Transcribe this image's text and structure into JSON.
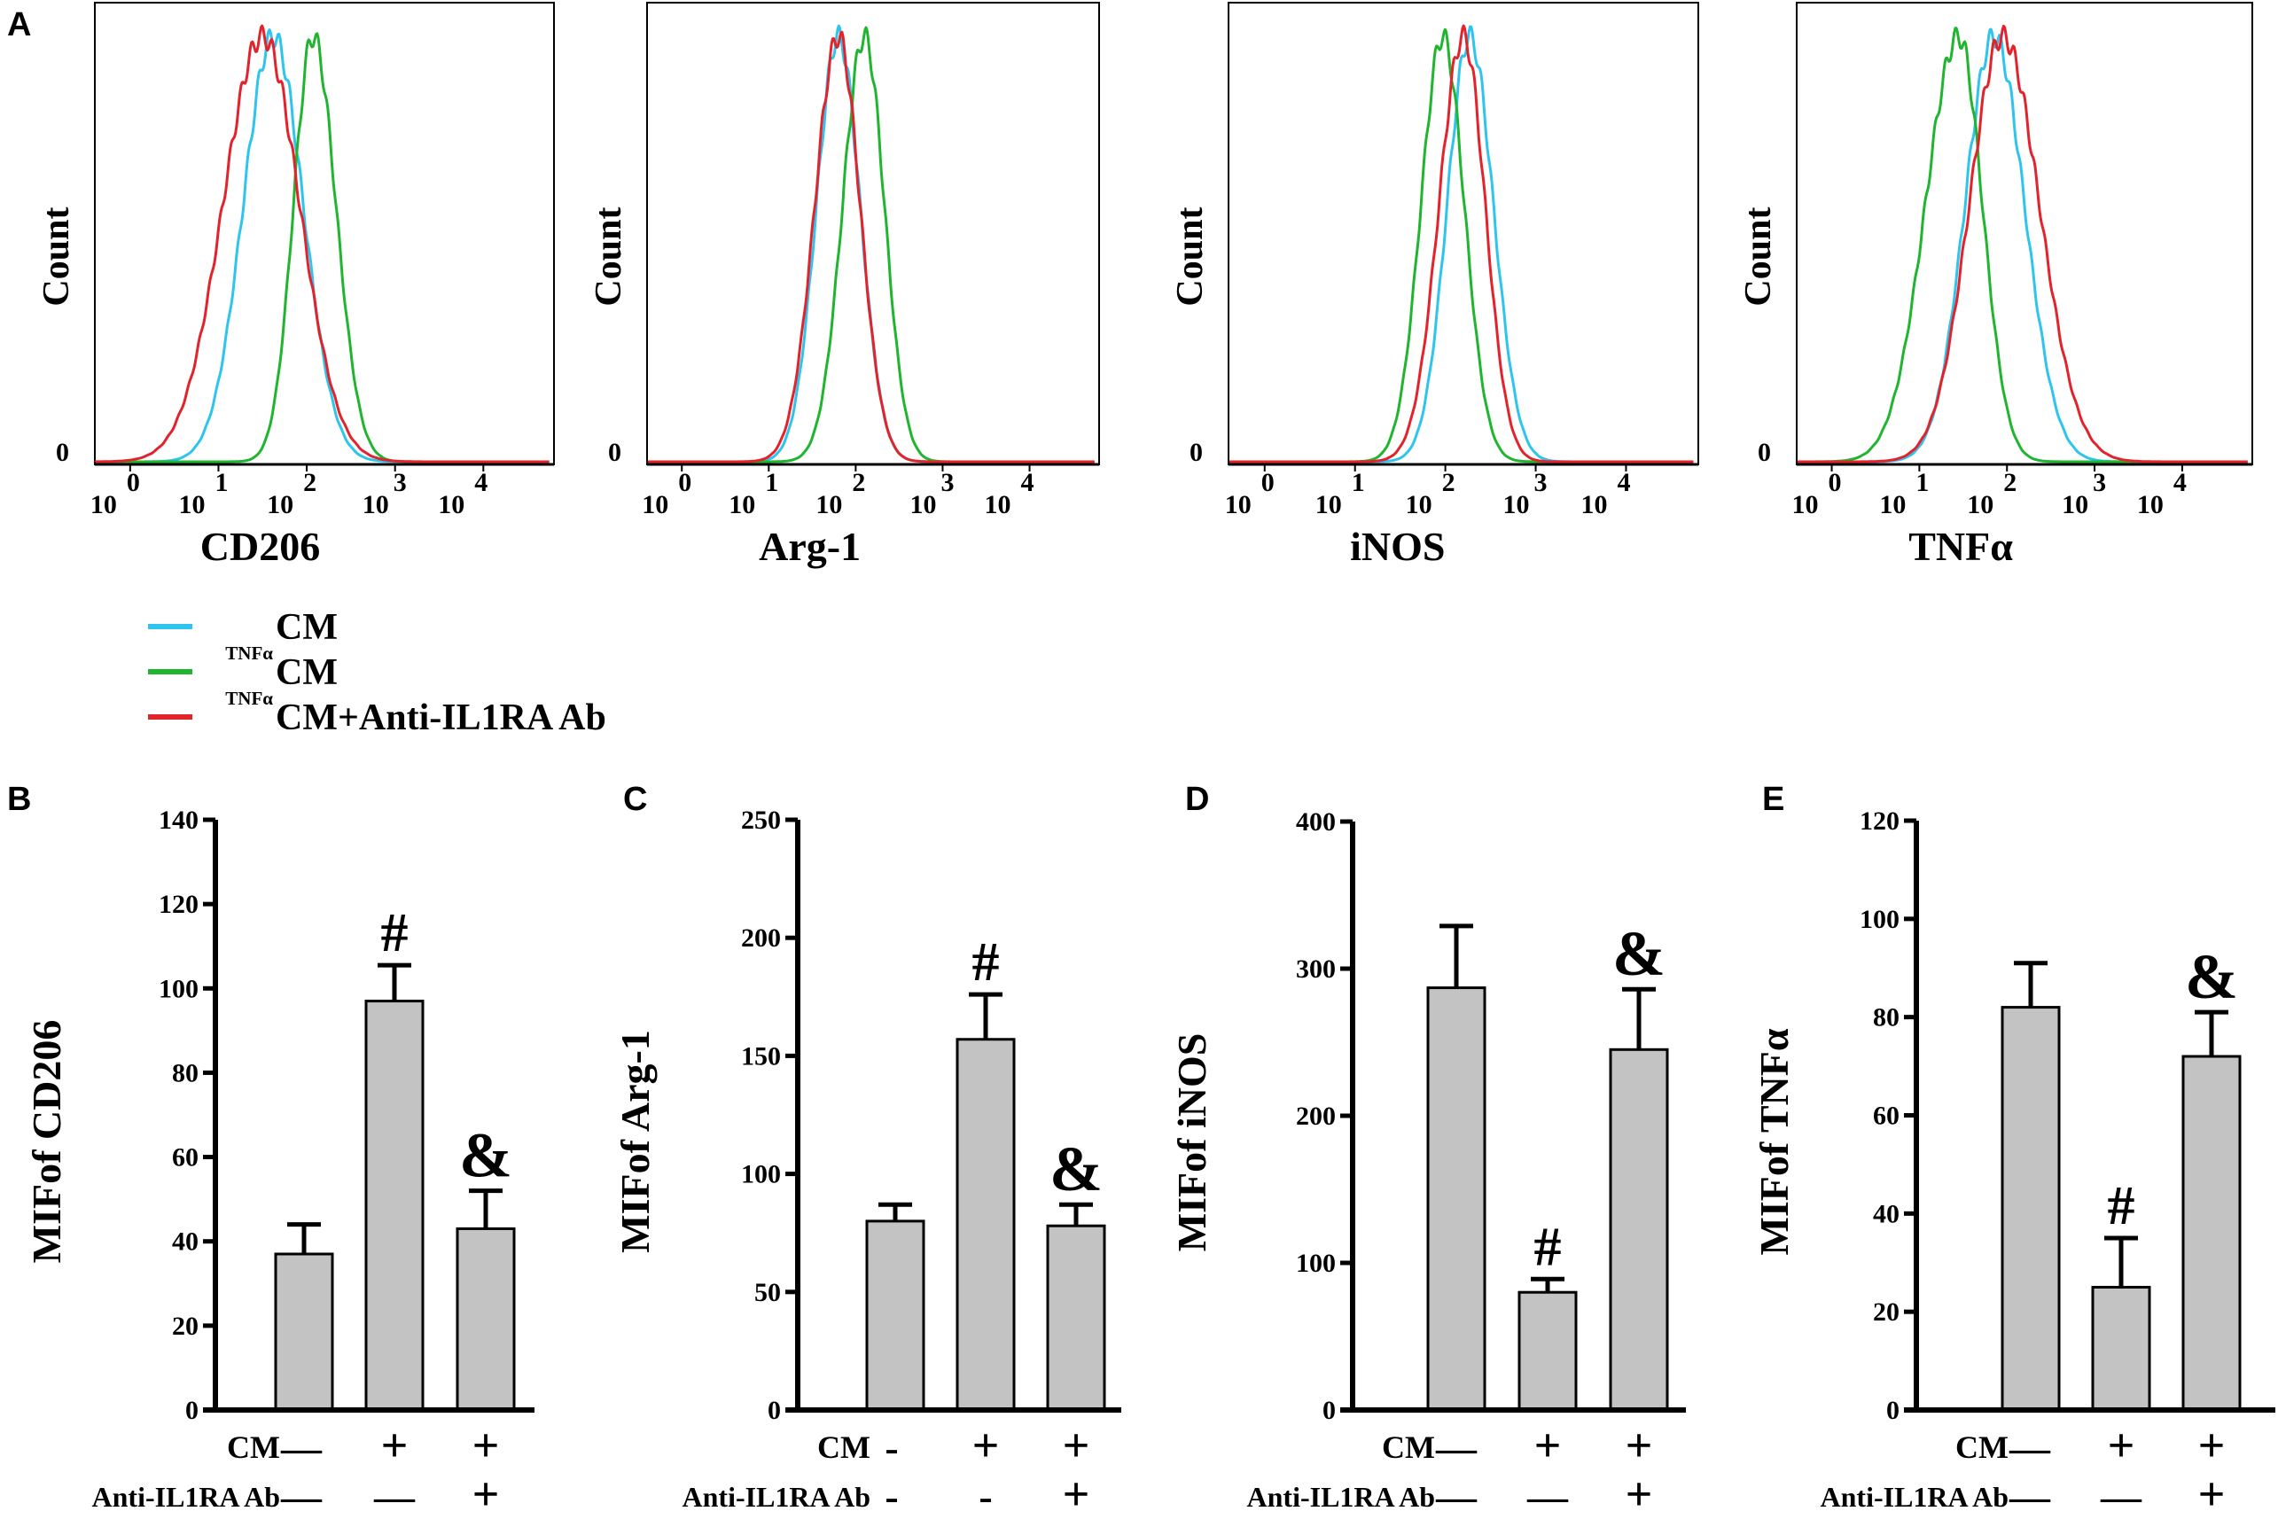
{
  "colors": {
    "cm": "#2ec4ee",
    "tnfa_cm": "#1fb52f",
    "tnfa_cm_ab": "#e3232c",
    "bar_fill": "#c3c3c3"
  },
  "panel_letters": [
    "A",
    "B",
    "C",
    "D",
    "E"
  ],
  "legend": [
    {
      "sup": "",
      "label": "CM",
      "color_key": "cm"
    },
    {
      "sup": "TNFα",
      "label": "CM",
      "color_key": "tnfa_cm"
    },
    {
      "sup": "TNFα",
      "label": "CM+Anti-IL1RA Ab",
      "color_key": "tnfa_cm_ab"
    }
  ],
  "histograms": [
    {
      "marker": "CD206",
      "ylabel": "Count",
      "zero_label": "0",
      "tick_base": [
        "10",
        "10",
        "10",
        "10",
        "10"
      ],
      "tick_exp": [
        "0",
        "1",
        "2",
        "3",
        "4"
      ],
      "series": [
        {
          "color_key": "cm",
          "peak_log": 1.62,
          "sigma_left": 0.34,
          "sigma_right": 0.34
        },
        {
          "color_key": "tnfa_cm",
          "peak_log": 2.07,
          "sigma_left": 0.22,
          "sigma_right": 0.26
        },
        {
          "color_key": "tnfa_cm_ab",
          "peak_log": 1.5,
          "sigma_left": 0.45,
          "sigma_right": 0.42
        }
      ]
    },
    {
      "marker": "Arg-1",
      "ylabel": "Count",
      "zero_label": "0",
      "tick_base": [
        "10",
        "10",
        "10",
        "10",
        "10"
      ],
      "tick_exp": [
        "0",
        "1",
        "2",
        "3",
        "4"
      ],
      "series": [
        {
          "color_key": "cm",
          "peak_log": 1.8,
          "sigma_left": 0.25,
          "sigma_right": 0.25
        },
        {
          "color_key": "tnfa_cm",
          "peak_log": 2.1,
          "sigma_left": 0.25,
          "sigma_right": 0.23
        },
        {
          "color_key": "tnfa_cm_ab",
          "peak_log": 1.8,
          "sigma_left": 0.27,
          "sigma_right": 0.25
        }
      ]
    },
    {
      "marker": "iNOS",
      "ylabel": "Count",
      "zero_label": "0",
      "tick_base": [
        "10",
        "10",
        "10",
        "10",
        "10"
      ],
      "tick_exp": [
        "0",
        "1",
        "2",
        "3",
        "4"
      ],
      "series": [
        {
          "color_key": "cm",
          "peak_log": 2.27,
          "sigma_left": 0.25,
          "sigma_right": 0.26
        },
        {
          "color_key": "tnfa_cm",
          "peak_log": 1.97,
          "sigma_left": 0.24,
          "sigma_right": 0.24
        },
        {
          "color_key": "tnfa_cm_ab",
          "peak_log": 2.2,
          "sigma_left": 0.27,
          "sigma_right": 0.24
        }
      ]
    },
    {
      "marker": "TNFα",
      "ylabel": "Count",
      "zero_label": "0",
      "tick_base": [
        "10",
        "10",
        "10",
        "10",
        "10"
      ],
      "tick_exp": [
        "0",
        "1",
        "2",
        "3",
        "4"
      ],
      "series": [
        {
          "color_key": "cm",
          "peak_log": 1.85,
          "sigma_left": 0.33,
          "sigma_right": 0.35
        },
        {
          "color_key": "tnfa_cm",
          "peak_log": 1.45,
          "sigma_left": 0.38,
          "sigma_right": 0.27
        },
        {
          "color_key": "tnfa_cm_ab",
          "peak_log": 1.95,
          "sigma_left": 0.38,
          "sigma_right": 0.42
        }
      ]
    }
  ],
  "chart_data": [
    {
      "type": "bar",
      "panel": "B",
      "title": "",
      "categories": [
        "CM",
        "TNFαCM",
        "TNFαCM+Anti-IL1RA Ab"
      ],
      "values": [
        37,
        97,
        43
      ],
      "errors": [
        7,
        8.5,
        9
      ],
      "annotations": [
        "",
        "#",
        "&"
      ],
      "ylabel": "MIFof CD206",
      "ylim": [
        0,
        140
      ],
      "yticks": [
        0,
        20,
        40,
        60,
        80,
        100,
        120,
        140
      ],
      "row_labels": [
        "CM",
        "Anti-IL1RA Ab"
      ],
      "row_signs": [
        [
          "—",
          "+",
          "+"
        ],
        [
          "—",
          "—",
          "+"
        ]
      ]
    },
    {
      "type": "bar",
      "panel": "C",
      "title": "",
      "categories": [
        "CM",
        "TNFαCM",
        "TNFαCM+Anti-IL1RA Ab"
      ],
      "values": [
        80,
        157,
        78
      ],
      "errors": [
        7,
        19,
        9
      ],
      "annotations": [
        "",
        "#",
        "&"
      ],
      "ylabel": "MIFof Arg-1",
      "ylim": [
        0,
        250
      ],
      "yticks": [
        0,
        50,
        100,
        150,
        200,
        250
      ],
      "row_labels": [
        "CM",
        "Anti-IL1RA Ab"
      ],
      "row_signs": [
        [
          "-",
          "+",
          "+"
        ],
        [
          "-",
          "-",
          "+"
        ]
      ]
    },
    {
      "type": "bar",
      "panel": "D",
      "title": "",
      "categories": [
        "CM",
        "TNFαCM",
        "TNFαCM+Anti-IL1RA Ab"
      ],
      "values": [
        287,
        80,
        245
      ],
      "errors": [
        42,
        9,
        41
      ],
      "annotations": [
        "",
        "#",
        "&"
      ],
      "ylabel": "MIFof iNOS",
      "ylim": [
        0,
        400
      ],
      "yticks": [
        0,
        100,
        200,
        300,
        400
      ],
      "row_labels": [
        "CM",
        "Anti-IL1RA Ab"
      ],
      "row_signs": [
        [
          "—",
          "+",
          "+"
        ],
        [
          "—",
          "—",
          "+"
        ]
      ]
    },
    {
      "type": "bar",
      "panel": "E",
      "title": "",
      "categories": [
        "CM",
        "TNFαCM",
        "TNFαCM+Anti-IL1RA Ab"
      ],
      "values": [
        82,
        25,
        72
      ],
      "errors": [
        9,
        10,
        9
      ],
      "annotations": [
        "",
        "#",
        "&"
      ],
      "ylabel": "MIFof TNFα",
      "ylim": [
        0,
        120
      ],
      "yticks": [
        0,
        20,
        40,
        60,
        80,
        100,
        120
      ],
      "row_labels": [
        "CM",
        "Anti-IL1RA Ab"
      ],
      "row_signs": [
        [
          "—",
          "+",
          "+"
        ],
        [
          "—",
          "—",
          "+"
        ]
      ]
    }
  ]
}
